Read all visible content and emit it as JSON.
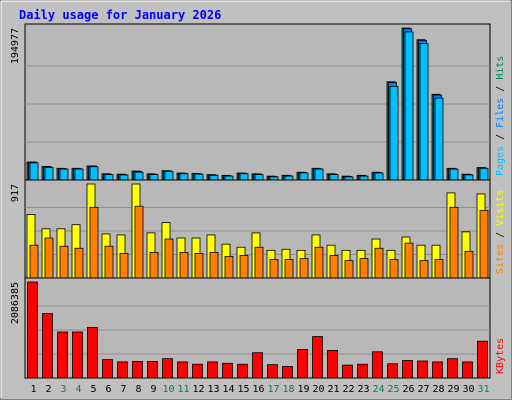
{
  "colors": {
    "background": "#c0c0c0",
    "plot_background": "#b8b8b8",
    "gridline": "#909090",
    "hits": "#00805c",
    "files": "#0080ff",
    "pages": "#00c0ff",
    "visits": "#ffff00",
    "sites": "#ff8000",
    "kbytes": "#ff0000",
    "title_text": "#0000ff",
    "weekend_label": "#00805c",
    "weekday_label": "#000000"
  },
  "chart_data": {
    "title": "Daily usage for January 2026",
    "type": "bar",
    "x": [
      "1",
      "2",
      "3",
      "4",
      "5",
      "6",
      "7",
      "8",
      "9",
      "10",
      "11",
      "12",
      "13",
      "14",
      "15",
      "16",
      "17",
      "18",
      "19",
      "20",
      "21",
      "22",
      "23",
      "24",
      "25",
      "26",
      "27",
      "28",
      "29",
      "30",
      "31"
    ],
    "weekend_days": [
      "3",
      "4",
      "10",
      "11",
      "17",
      "18",
      "24",
      "25",
      "31"
    ],
    "panels": [
      {
        "ymax_label": "194977",
        "ymax": 194977,
        "ylabel_parts": [
          {
            "text": "Pages",
            "color": "#00c0ff"
          },
          {
            "text": " / ",
            "color": "#000000"
          },
          {
            "text": "Files",
            "color": "#0080ff"
          },
          {
            "text": " / ",
            "color": "#000000"
          },
          {
            "text": "Hits",
            "color": "#00805c"
          }
        ],
        "series": [
          {
            "name": "Hits",
            "color": "#00805c",
            "values": [
              23000,
              17500,
              15000,
              15000,
              18000,
              8000,
              7500,
              11500,
              8000,
              12000,
              9000,
              8500,
              7000,
              6000,
              9000,
              8000,
              5000,
              6000,
              10000,
              15000,
              8000,
              5000,
              6000,
              10000,
              126000,
              194977,
              180000,
              110000,
              15000,
              7500,
              16000
            ]
          },
          {
            "name": "Files",
            "color": "#0080ff",
            "values": [
              23000,
              17000,
              14500,
              14500,
              18000,
              7500,
              7000,
              11000,
              7500,
              11500,
              8500,
              8000,
              6500,
              5500,
              8500,
              7500,
              4500,
              5500,
              9500,
              14500,
              7500,
              4500,
              5500,
              9500,
              125000,
              194000,
              179000,
              109000,
              14500,
              7000,
              15500
            ]
          },
          {
            "name": "Pages",
            "color": "#00c0ff",
            "values": [
              22000,
              16000,
              14000,
              14000,
              17000,
              7000,
              6500,
              10000,
              7000,
              11000,
              8000,
              7500,
              6000,
              5000,
              8000,
              7000,
              4000,
              5000,
              9000,
              14000,
              7000,
              4000,
              5000,
              9000,
              120000,
              190000,
              175000,
              105000,
              14000,
              6500,
              15000
            ]
          }
        ]
      },
      {
        "ymax_label": "917",
        "ymax": 917,
        "ylabel_parts": [
          {
            "text": "Sites",
            "color": "#ff8000"
          },
          {
            "text": " / ",
            "color": "#000000"
          },
          {
            "text": "Visits",
            "color": "#ffff00"
          }
        ],
        "series": [
          {
            "name": "Visits",
            "color": "#ffff00",
            "values": [
              620,
              480,
              480,
              520,
              917,
              430,
              420,
              917,
              440,
              540,
              390,
              390,
              420,
              330,
              300,
              440,
              270,
              280,
              270,
              420,
              320,
              270,
              270,
              380,
              270,
              400,
              320,
              320,
              830,
              450,
              820
            ]
          },
          {
            "name": "Sites",
            "color": "#ff8000",
            "values": [
              320,
              390,
              310,
              290,
              690,
              310,
              240,
              700,
              250,
              380,
              250,
              240,
              250,
              210,
              220,
              300,
              180,
              180,
              190,
              300,
              220,
              170,
              190,
              290,
              180,
              340,
              170,
              180,
              690,
              260,
              660
            ]
          }
        ]
      },
      {
        "ymax_label": "2086385",
        "ymax": 2086385,
        "ylabel_parts": [
          {
            "text": "KBytes",
            "color": "#ff0000"
          }
        ],
        "series": [
          {
            "name": "KBytes",
            "color": "#ff0000",
            "values": [
              2086385,
              1400000,
              1000000,
              1000000,
              1100000,
              400000,
              350000,
              360000,
              360000,
              420000,
              350000,
              300000,
              350000,
              320000,
              300000,
              550000,
              290000,
              250000,
              620000,
              900000,
              600000,
              280000,
              300000,
              570000,
              310000,
              380000,
              370000,
              350000,
              420000,
              350000,
              800000
            ]
          }
        ]
      }
    ]
  }
}
